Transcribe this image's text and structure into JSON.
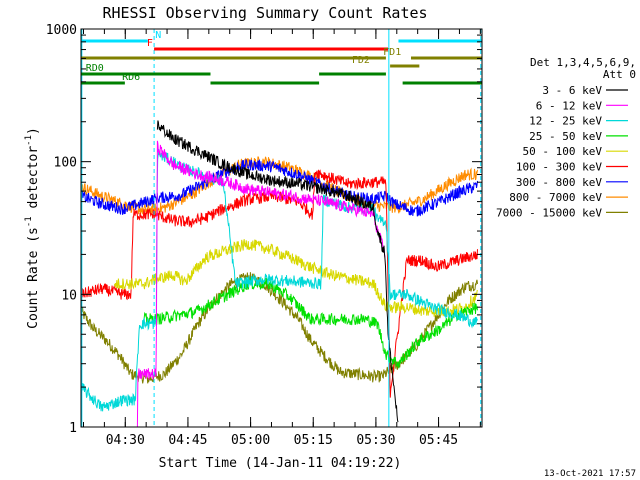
{
  "chart_data": {
    "type": "line",
    "title": "RHESSI Observing Summary Count Rates",
    "xlabel": "Start Time (14-Jan-11 04:19:22)",
    "ylabel_main": "Count Rate (s",
    "ylabel_sup1": "-1",
    "ylabel_mid": " detector",
    "ylabel_sup2": "-1",
    "ylabel_end": ")",
    "y_scale": "log",
    "ylim": [
      1,
      1000
    ],
    "xlim_minutes": [
      0,
      96
    ],
    "x_ticks": [
      {
        "m": 10.6,
        "label": "04:30"
      },
      {
        "m": 25.6,
        "label": "04:45"
      },
      {
        "m": 40.6,
        "label": "05:00"
      },
      {
        "m": 55.6,
        "label": "05:15"
      },
      {
        "m": 70.6,
        "label": "05:30"
      },
      {
        "m": 85.6,
        "label": "05:45"
      }
    ],
    "y_ticks": [
      {
        "v": 1,
        "label": "1"
      },
      {
        "v": 10,
        "label": "10"
      },
      {
        "v": 100,
        "label": "100"
      },
      {
        "v": 1000,
        "label": "1000"
      }
    ],
    "legend_header": [
      "Det 1,3,4,5,6,9,",
      "Att 0"
    ],
    "series": [
      {
        "name": "3 - 6 keV",
        "color": "#000000",
        "points": [
          [
            18.3,
            190
          ],
          [
            22,
            150
          ],
          [
            28,
            120
          ],
          [
            34,
            95
          ],
          [
            40,
            80
          ],
          [
            46,
            72
          ],
          [
            52,
            68
          ],
          [
            58,
            62
          ],
          [
            64,
            55
          ],
          [
            70,
            45
          ],
          [
            71,
            30
          ],
          [
            72.8,
            20
          ],
          [
            73.5,
            5
          ],
          [
            76,
            1
          ]
        ]
      },
      {
        "name": "6 - 12 keV",
        "color": "#ff00ff",
        "points": [
          [
            13.5,
            1
          ],
          [
            13.6,
            2.5
          ],
          [
            14,
            2.5
          ],
          [
            18,
            2.5
          ],
          [
            18.3,
            130
          ],
          [
            22,
            95
          ],
          [
            28,
            80
          ],
          [
            34,
            72
          ],
          [
            40,
            62
          ],
          [
            46,
            58
          ],
          [
            52,
            54
          ],
          [
            58,
            50
          ],
          [
            64,
            45
          ],
          [
            70,
            40
          ],
          [
            71,
            30
          ],
          [
            72.8,
            20
          ]
        ]
      },
      {
        "name": "12 - 25 keV",
        "color": "#00d8d8",
        "points": [
          [
            0,
            2
          ],
          [
            5,
            1.4
          ],
          [
            10,
            1.6
          ],
          [
            13,
            1.6
          ],
          [
            14,
            6
          ],
          [
            18,
            6
          ],
          [
            18.3,
            115
          ],
          [
            22,
            100
          ],
          [
            25,
            88
          ],
          [
            31,
            76
          ],
          [
            34,
            70
          ],
          [
            37,
            12
          ],
          [
            44,
            13
          ],
          [
            51,
            12.5
          ],
          [
            57.5,
            12
          ],
          [
            58,
            52
          ],
          [
            64,
            45
          ],
          [
            70,
            45
          ],
          [
            71,
            36
          ],
          [
            73,
            36
          ],
          [
            74,
            10
          ],
          [
            78,
            10
          ],
          [
            84,
            8
          ],
          [
            90,
            7
          ],
          [
            95,
            6
          ]
        ]
      },
      {
        "name": "25 - 50 keV",
        "color": "#00e000",
        "points": [
          [
            15,
            6.5
          ],
          [
            18,
            6.5
          ],
          [
            24,
            7
          ],
          [
            28,
            7.5
          ],
          [
            34,
            9.5
          ],
          [
            40,
            12
          ],
          [
            45,
            12
          ],
          [
            50,
            9.5
          ],
          [
            55,
            6.5
          ],
          [
            62,
            6.5
          ],
          [
            68,
            6.5
          ],
          [
            71,
            6
          ],
          [
            73,
            3.5
          ],
          [
            76,
            3
          ],
          [
            81,
            4.5
          ],
          [
            86,
            5.5
          ],
          [
            90,
            7
          ],
          [
            95,
            8
          ]
        ]
      },
      {
        "name": "50 - 100 keV",
        "color": "#d8d800",
        "points": [
          [
            8,
            12
          ],
          [
            12,
            12
          ],
          [
            15,
            12
          ],
          [
            18,
            13
          ],
          [
            22,
            14
          ],
          [
            25,
            12.5
          ],
          [
            30,
            19
          ],
          [
            34,
            21
          ],
          [
            40,
            24
          ],
          [
            45,
            22
          ],
          [
            50,
            19
          ],
          [
            55,
            16
          ],
          [
            60,
            14
          ],
          [
            65,
            13
          ],
          [
            70,
            12
          ],
          [
            73,
            8
          ],
          [
            78,
            8
          ],
          [
            82,
            7.5
          ],
          [
            88,
            7.5
          ],
          [
            92,
            8
          ],
          [
            95,
            10
          ]
        ]
      },
      {
        "name": "100 - 300 keV",
        "color": "#ff0000",
        "points": [
          [
            0,
            10
          ],
          [
            5,
            11
          ],
          [
            10,
            10
          ],
          [
            12,
            10
          ],
          [
            12.5,
            40
          ],
          [
            18,
            40
          ],
          [
            22,
            36
          ],
          [
            26,
            35
          ],
          [
            30,
            38
          ],
          [
            34,
            44
          ],
          [
            40,
            52
          ],
          [
            46,
            55
          ],
          [
            52,
            50
          ],
          [
            55.5,
            40
          ],
          [
            56,
            85
          ],
          [
            60,
            75
          ],
          [
            64,
            68
          ],
          [
            70,
            70
          ],
          [
            73,
            70
          ],
          [
            74,
            1.8
          ],
          [
            78,
            18
          ],
          [
            82,
            18
          ],
          [
            85,
            16
          ],
          [
            90,
            18
          ],
          [
            95,
            20
          ]
        ]
      },
      {
        "name": "300 - 800 keV",
        "color": "#0000ff",
        "points": [
          [
            0,
            55
          ],
          [
            5,
            48
          ],
          [
            10,
            44
          ],
          [
            14,
            48
          ],
          [
            18,
            53
          ],
          [
            24,
            56
          ],
          [
            30,
            70
          ],
          [
            36,
            88
          ],
          [
            40,
            95
          ],
          [
            46,
            92
          ],
          [
            52,
            80
          ],
          [
            58,
            66
          ],
          [
            64,
            55
          ],
          [
            70,
            52
          ],
          [
            73,
            55
          ],
          [
            75,
            48
          ],
          [
            80,
            42
          ],
          [
            86,
            50
          ],
          [
            90,
            58
          ],
          [
            95,
            66
          ]
        ]
      },
      {
        "name": "800 - 7000 keV",
        "color": "#ff8c00",
        "points": [
          [
            0,
            65
          ],
          [
            5,
            55
          ],
          [
            10,
            48
          ],
          [
            15,
            43
          ],
          [
            20,
            45
          ],
          [
            26,
            55
          ],
          [
            32,
            75
          ],
          [
            38,
            95
          ],
          [
            44,
            100
          ],
          [
            50,
            90
          ],
          [
            56,
            75
          ],
          [
            62,
            58
          ],
          [
            68,
            48
          ],
          [
            72,
            46
          ],
          [
            76,
            45
          ],
          [
            82,
            52
          ],
          [
            88,
            68
          ],
          [
            92,
            80
          ],
          [
            95,
            80
          ]
        ]
      },
      {
        "name": "7000 - 15000 keV",
        "color": "#808000",
        "points": [
          [
            0,
            7.5
          ],
          [
            3,
            5.5
          ],
          [
            6,
            4.5
          ],
          [
            9,
            3.5
          ],
          [
            12,
            2.5
          ],
          [
            16,
            2.3
          ],
          [
            20,
            2.5
          ],
          [
            24,
            3.5
          ],
          [
            28,
            6
          ],
          [
            32,
            9
          ],
          [
            36,
            12
          ],
          [
            40,
            13.5
          ],
          [
            44,
            12
          ],
          [
            48,
            9
          ],
          [
            52,
            6.5
          ],
          [
            55,
            4.5
          ],
          [
            58,
            3.5
          ],
          [
            62,
            2.6
          ],
          [
            66,
            2.5
          ],
          [
            70,
            2.4
          ],
          [
            72,
            2.4
          ],
          [
            76,
            3
          ],
          [
            80,
            4
          ],
          [
            84,
            6
          ],
          [
            88,
            9
          ],
          [
            92,
            11.5
          ],
          [
            95,
            12
          ]
        ]
      }
    ],
    "flag_bars": [
      {
        "label": "N",
        "color": "#00e0ff",
        "segments": [
          [
            0,
            16
          ],
          [
            76,
            96
          ]
        ],
        "label_m": 18.5
      },
      {
        "label": "F",
        "color": "#ff0000",
        "segments": [
          [
            17.5,
            73.5
          ]
        ],
        "label_m": 16.5
      },
      {
        "label": "FD1",
        "color": "#808000",
        "segments": [
          [
            0,
            73
          ],
          [
            79,
            96
          ]
        ],
        "label_m": 74.5
      },
      {
        "label": "FD2",
        "color": "#808000",
        "segments": [
          [
            74,
            81
          ]
        ],
        "label_m": 67
      },
      {
        "label": "RD0",
        "color": "#008000",
        "segments": [
          [
            0,
            31
          ],
          [
            57,
            73
          ]
        ],
        "label_m": 3.3
      },
      {
        "label": "RD6",
        "color": "#008000",
        "segments": [
          [
            0,
            10.5
          ],
          [
            31,
            57
          ],
          [
            77,
            96
          ]
        ],
        "label_m": 12
      }
    ],
    "vertical_lines": [
      {
        "m": 0.2,
        "color": "#00e0ff",
        "style": "solid"
      },
      {
        "m": 17.5,
        "color": "#00e0ff",
        "style": "dashed"
      },
      {
        "m": 73.7,
        "color": "#00e0ff",
        "style": "solid"
      },
      {
        "m": 95.7,
        "color": "#00e0ff",
        "style": "dashed"
      }
    ],
    "grid": false,
    "legend_position": "right"
  },
  "footer": {
    "date_stamp": "13-Oct-2021 17:57"
  }
}
